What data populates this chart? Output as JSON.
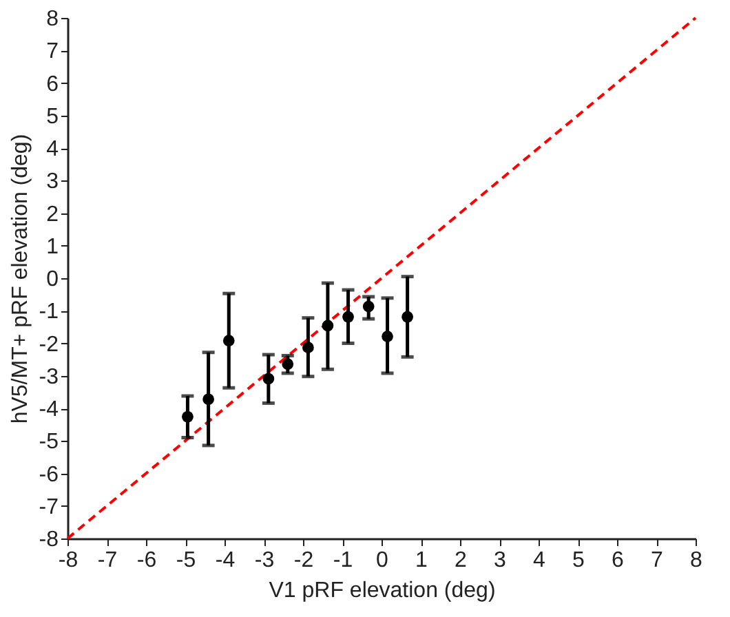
{
  "chart_data": {
    "type": "scatter",
    "xlabel": "V1 pRF elevation (deg)",
    "ylabel": "hV5/MT+ pRF elevation (deg)",
    "xlim": [
      -8,
      8
    ],
    "ylim": [
      -8,
      8
    ],
    "xticks": [
      -8,
      -7,
      -6,
      -5,
      -4,
      -3,
      -2,
      -1,
      0,
      1,
      2,
      3,
      4,
      5,
      6,
      7,
      8
    ],
    "yticks": [
      -8,
      -7,
      -6,
      -5,
      -4,
      -3,
      -2,
      -1,
      0,
      1,
      2,
      3,
      4,
      5,
      6,
      7,
      8
    ],
    "grid": false,
    "series": [
      {
        "type": "line",
        "color": "#ff0000",
        "line_style": "dashed",
        "marker": "none",
        "x": [
          -8,
          8
        ],
        "values": [
          -8,
          8
        ]
      },
      {
        "type": "scatter",
        "color": "#000000",
        "marker": "circle",
        "x": [
          -4.94,
          -4.41,
          -3.89,
          -2.88,
          -2.39,
          -1.87,
          -1.37,
          -0.85,
          -0.33,
          0.15,
          0.66
        ],
        "values": [
          -4.26,
          -3.72,
          -1.92,
          -3.09,
          -2.64,
          -2.13,
          -1.46,
          -1.19,
          -0.87,
          -1.79,
          -1.19
        ],
        "errors": [
          [
            -4.9,
            -3.62
          ],
          [
            -5.14,
            -2.28
          ],
          [
            -3.37,
            -0.47
          ],
          [
            -3.84,
            -2.35
          ],
          [
            -2.92,
            -2.38
          ],
          [
            -3.02,
            -1.22
          ],
          [
            -2.8,
            -0.15
          ],
          [
            -2.0,
            -0.36
          ],
          [
            -1.25,
            -0.57
          ],
          [
            -2.92,
            -0.61
          ],
          [
            -2.42,
            0.05
          ]
        ]
      }
    ]
  }
}
